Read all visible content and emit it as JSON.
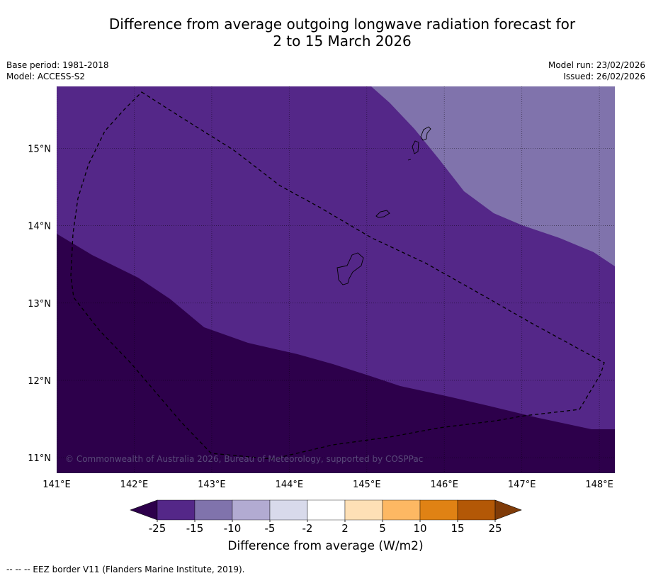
{
  "title_line1": "Difference from average outgoing longwave radiation forecast for",
  "title_line2": "2 to 15 March 2026",
  "base_period": "Base period: 1981-2018",
  "model": "Model: ACCESS-S2",
  "model_run": "Model run: 23/02/2026",
  "issued": "Issued: 26/02/2026",
  "copyright": "© Commonwealth of Australia 2026, Bureau of Meteorology, supported by COSPPac",
  "colorbar_title": "Difference from average (W/m2)",
  "footnote": "--  --  -- EEZ border V11 (Flanders Marine Institute, 2019).",
  "map": {
    "lon_range": [
      141.0,
      148.2
    ],
    "lat_range": [
      10.8,
      15.8
    ],
    "lon_ticks": [
      {
        "value": 141,
        "label": "141°E"
      },
      {
        "value": 142,
        "label": "142°E"
      },
      {
        "value": 143,
        "label": "143°E"
      },
      {
        "value": 144,
        "label": "144°E"
      },
      {
        "value": 145,
        "label": "145°E"
      },
      {
        "value": 146,
        "label": "146°E"
      },
      {
        "value": 147,
        "label": "147°E"
      },
      {
        "value": 148,
        "label": "148°E"
      }
    ],
    "lat_ticks": [
      {
        "value": 15,
        "label": "15°N"
      },
      {
        "value": 14,
        "label": "14°N"
      },
      {
        "value": 13,
        "label": "13°N"
      },
      {
        "value": 12,
        "label": "12°N"
      },
      {
        "value": 11,
        "label": "11°N"
      }
    ]
  },
  "colorbar": {
    "ticks": [
      "-25",
      "-15",
      "-10",
      "-5",
      "-2",
      "2",
      "5",
      "10",
      "15",
      "25"
    ],
    "under_color": "#2d004b",
    "over_color": "#7f3b08",
    "colors": [
      "#542788",
      "#8073ac",
      "#b2abd2",
      "#d8daeb",
      "#ffffff",
      "#fee0b6",
      "#fdb863",
      "#e08214",
      "#b35806"
    ]
  },
  "colors": {
    "below_25": "#2d004b",
    "band_25_15": "#542788",
    "band_15_10": "#8073ac"
  }
}
